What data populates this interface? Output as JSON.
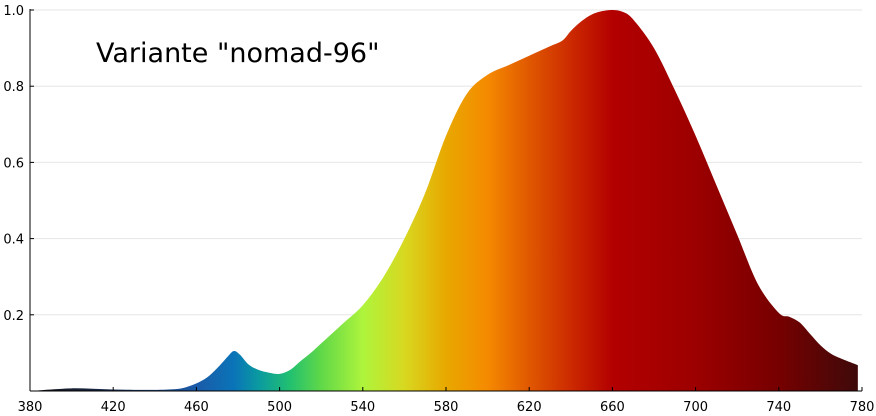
{
  "chart_data": {
    "type": "area",
    "title": "Variante \"nomad-96\"",
    "xlabel": "",
    "ylabel": "",
    "xlim": [
      380,
      780
    ],
    "ylim": [
      0,
      1.0
    ],
    "x_ticks": [
      380,
      420,
      460,
      500,
      540,
      580,
      620,
      660,
      700,
      740,
      780
    ],
    "y_ticks": [
      0.2,
      0.4,
      0.6,
      0.8,
      1.0
    ],
    "y_tick_labels": [
      "0.2",
      "0.4",
      "0.6",
      "0.8",
      "1.0"
    ],
    "grid": true,
    "fill": "spectral wavelength colors",
    "x": [
      380,
      390,
      400,
      410,
      420,
      430,
      440,
      450,
      455,
      460,
      465,
      470,
      475,
      478,
      481,
      485,
      490,
      495,
      500,
      505,
      510,
      515,
      520,
      530,
      540,
      550,
      560,
      570,
      580,
      590,
      600,
      610,
      620,
      630,
      636,
      640,
      645,
      650,
      655,
      660,
      665,
      670,
      680,
      690,
      700,
      710,
      720,
      730,
      740,
      745,
      750,
      755,
      760,
      765,
      770,
      778
    ],
    "y": [
      0.0,
      0.004,
      0.007,
      0.006,
      0.004,
      0.003,
      0.003,
      0.005,
      0.01,
      0.02,
      0.035,
      0.06,
      0.09,
      0.105,
      0.095,
      0.07,
      0.055,
      0.048,
      0.045,
      0.055,
      0.078,
      0.1,
      0.125,
      0.175,
      0.225,
      0.3,
      0.4,
      0.52,
      0.67,
      0.78,
      0.83,
      0.855,
      0.88,
      0.905,
      0.92,
      0.945,
      0.97,
      0.988,
      0.997,
      1.0,
      0.995,
      0.975,
      0.9,
      0.79,
      0.67,
      0.54,
      0.41,
      0.28,
      0.205,
      0.195,
      0.18,
      0.15,
      0.12,
      0.098,
      0.085,
      0.068
    ]
  }
}
